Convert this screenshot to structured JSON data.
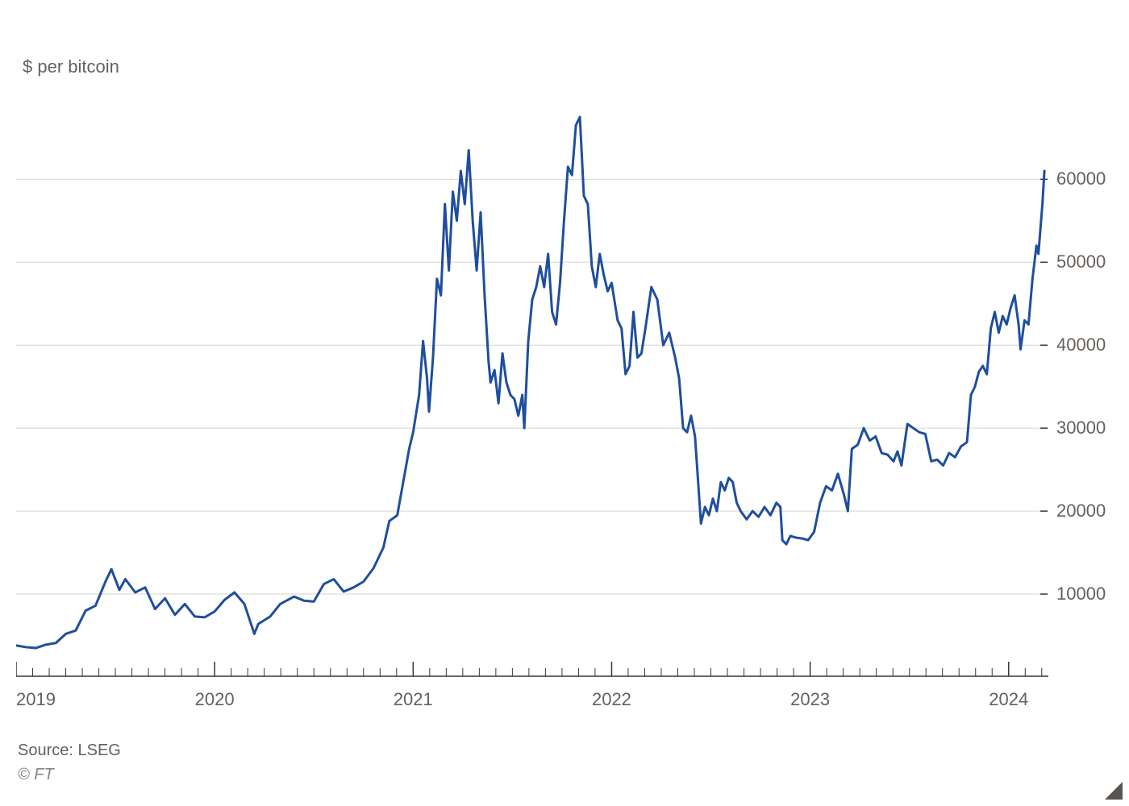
{
  "subtitle": "$ per bitcoin",
  "source": "Source: LSEG",
  "copyright": "© FT",
  "chart": {
    "type": "line",
    "background_color": "#ffffff",
    "line_color": "#1f4e9c",
    "line_width": 3,
    "grid_color": "#d9d4cf",
    "axis_color": "#3b3631",
    "tick_color": "#3b3631",
    "text_color": "#66605c",
    "label_fontsize": 22,
    "x": {
      "start_year": 2019,
      "end_year_fraction": 2024.2,
      "major_ticks": [
        2019,
        2020,
        2021,
        2022,
        2023,
        2024
      ],
      "minor_per_year": 12
    },
    "y": {
      "min": 0,
      "max": 68000,
      "gridlines": [
        10000,
        20000,
        30000,
        40000,
        50000,
        60000
      ],
      "labels": [
        "10000",
        "20000",
        "30000",
        "40000",
        "50000",
        "60000"
      ]
    },
    "series": [
      {
        "t": 2019.0,
        "v": 3800
      },
      {
        "t": 2019.05,
        "v": 3600
      },
      {
        "t": 2019.1,
        "v": 3500
      },
      {
        "t": 2019.15,
        "v": 3900
      },
      {
        "t": 2019.2,
        "v": 4100
      },
      {
        "t": 2019.25,
        "v": 5200
      },
      {
        "t": 2019.3,
        "v": 5600
      },
      {
        "t": 2019.35,
        "v": 8000
      },
      {
        "t": 2019.4,
        "v": 8600
      },
      {
        "t": 2019.45,
        "v": 11500
      },
      {
        "t": 2019.48,
        "v": 13000
      },
      {
        "t": 2019.52,
        "v": 10500
      },
      {
        "t": 2019.55,
        "v": 11800
      },
      {
        "t": 2019.6,
        "v": 10200
      },
      {
        "t": 2019.65,
        "v": 10800
      },
      {
        "t": 2019.7,
        "v": 8200
      },
      {
        "t": 2019.75,
        "v": 9500
      },
      {
        "t": 2019.8,
        "v": 7500
      },
      {
        "t": 2019.85,
        "v": 8800
      },
      {
        "t": 2019.9,
        "v": 7300
      },
      {
        "t": 2019.95,
        "v": 7200
      },
      {
        "t": 2020.0,
        "v": 7900
      },
      {
        "t": 2020.05,
        "v": 9300
      },
      {
        "t": 2020.1,
        "v": 10200
      },
      {
        "t": 2020.15,
        "v": 8800
      },
      {
        "t": 2020.2,
        "v": 5200
      },
      {
        "t": 2020.22,
        "v": 6400
      },
      {
        "t": 2020.28,
        "v": 7300
      },
      {
        "t": 2020.33,
        "v": 8800
      },
      {
        "t": 2020.4,
        "v": 9700
      },
      {
        "t": 2020.45,
        "v": 9200
      },
      {
        "t": 2020.5,
        "v": 9100
      },
      {
        "t": 2020.55,
        "v": 11200
      },
      {
        "t": 2020.6,
        "v": 11800
      },
      {
        "t": 2020.65,
        "v": 10300
      },
      {
        "t": 2020.7,
        "v": 10800
      },
      {
        "t": 2020.75,
        "v": 11500
      },
      {
        "t": 2020.8,
        "v": 13100
      },
      {
        "t": 2020.85,
        "v": 15600
      },
      {
        "t": 2020.88,
        "v": 18800
      },
      {
        "t": 2020.92,
        "v": 19500
      },
      {
        "t": 2020.95,
        "v": 23500
      },
      {
        "t": 2020.98,
        "v": 27500
      },
      {
        "t": 2021.0,
        "v": 29500
      },
      {
        "t": 2021.03,
        "v": 34000
      },
      {
        "t": 2021.05,
        "v": 40500
      },
      {
        "t": 2021.07,
        "v": 36000
      },
      {
        "t": 2021.08,
        "v": 32000
      },
      {
        "t": 2021.1,
        "v": 38500
      },
      {
        "t": 2021.12,
        "v": 48000
      },
      {
        "t": 2021.14,
        "v": 46000
      },
      {
        "t": 2021.16,
        "v": 57000
      },
      {
        "t": 2021.18,
        "v": 49000
      },
      {
        "t": 2021.2,
        "v": 58500
      },
      {
        "t": 2021.22,
        "v": 55000
      },
      {
        "t": 2021.24,
        "v": 61000
      },
      {
        "t": 2021.26,
        "v": 57000
      },
      {
        "t": 2021.28,
        "v": 63500
      },
      {
        "t": 2021.3,
        "v": 55000
      },
      {
        "t": 2021.32,
        "v": 49000
      },
      {
        "t": 2021.34,
        "v": 56000
      },
      {
        "t": 2021.36,
        "v": 46000
      },
      {
        "t": 2021.38,
        "v": 38000
      },
      {
        "t": 2021.39,
        "v": 35500
      },
      {
        "t": 2021.41,
        "v": 37000
      },
      {
        "t": 2021.43,
        "v": 33000
      },
      {
        "t": 2021.45,
        "v": 39000
      },
      {
        "t": 2021.47,
        "v": 35500
      },
      {
        "t": 2021.49,
        "v": 34000
      },
      {
        "t": 2021.51,
        "v": 33500
      },
      {
        "t": 2021.53,
        "v": 31500
      },
      {
        "t": 2021.55,
        "v": 34000
      },
      {
        "t": 2021.56,
        "v": 30000
      },
      {
        "t": 2021.58,
        "v": 40500
      },
      {
        "t": 2021.6,
        "v": 45500
      },
      {
        "t": 2021.62,
        "v": 47000
      },
      {
        "t": 2021.64,
        "v": 49500
      },
      {
        "t": 2021.66,
        "v": 47000
      },
      {
        "t": 2021.68,
        "v": 51000
      },
      {
        "t": 2021.7,
        "v": 44000
      },
      {
        "t": 2021.72,
        "v": 42500
      },
      {
        "t": 2021.74,
        "v": 47500
      },
      {
        "t": 2021.76,
        "v": 55000
      },
      {
        "t": 2021.78,
        "v": 61500
      },
      {
        "t": 2021.8,
        "v": 60500
      },
      {
        "t": 2021.82,
        "v": 66500
      },
      {
        "t": 2021.84,
        "v": 67500
      },
      {
        "t": 2021.86,
        "v": 58000
      },
      {
        "t": 2021.88,
        "v": 57000
      },
      {
        "t": 2021.9,
        "v": 49500
      },
      {
        "t": 2021.92,
        "v": 47000
      },
      {
        "t": 2021.94,
        "v": 51000
      },
      {
        "t": 2021.96,
        "v": 48500
      },
      {
        "t": 2021.98,
        "v": 46500
      },
      {
        "t": 2022.0,
        "v": 47500
      },
      {
        "t": 2022.03,
        "v": 43000
      },
      {
        "t": 2022.05,
        "v": 42000
      },
      {
        "t": 2022.07,
        "v": 36500
      },
      {
        "t": 2022.09,
        "v": 37500
      },
      {
        "t": 2022.11,
        "v": 44000
      },
      {
        "t": 2022.13,
        "v": 38500
      },
      {
        "t": 2022.15,
        "v": 39000
      },
      {
        "t": 2022.17,
        "v": 42000
      },
      {
        "t": 2022.2,
        "v": 47000
      },
      {
        "t": 2022.23,
        "v": 45500
      },
      {
        "t": 2022.26,
        "v": 40000
      },
      {
        "t": 2022.29,
        "v": 41500
      },
      {
        "t": 2022.32,
        "v": 38500
      },
      {
        "t": 2022.34,
        "v": 36000
      },
      {
        "t": 2022.36,
        "v": 30000
      },
      {
        "t": 2022.38,
        "v": 29500
      },
      {
        "t": 2022.4,
        "v": 31500
      },
      {
        "t": 2022.42,
        "v": 29000
      },
      {
        "t": 2022.44,
        "v": 22000
      },
      {
        "t": 2022.45,
        "v": 18500
      },
      {
        "t": 2022.47,
        "v": 20500
      },
      {
        "t": 2022.49,
        "v": 19500
      },
      {
        "t": 2022.51,
        "v": 21500
      },
      {
        "t": 2022.53,
        "v": 20000
      },
      {
        "t": 2022.55,
        "v": 23500
      },
      {
        "t": 2022.57,
        "v": 22500
      },
      {
        "t": 2022.59,
        "v": 24000
      },
      {
        "t": 2022.61,
        "v": 23500
      },
      {
        "t": 2022.63,
        "v": 21000
      },
      {
        "t": 2022.65,
        "v": 20000
      },
      {
        "t": 2022.68,
        "v": 19000
      },
      {
        "t": 2022.71,
        "v": 20000
      },
      {
        "t": 2022.74,
        "v": 19300
      },
      {
        "t": 2022.77,
        "v": 20500
      },
      {
        "t": 2022.8,
        "v": 19500
      },
      {
        "t": 2022.83,
        "v": 21000
      },
      {
        "t": 2022.85,
        "v": 20500
      },
      {
        "t": 2022.86,
        "v": 16500
      },
      {
        "t": 2022.88,
        "v": 16000
      },
      {
        "t": 2022.9,
        "v": 17000
      },
      {
        "t": 2022.93,
        "v": 16800
      },
      {
        "t": 2022.96,
        "v": 16700
      },
      {
        "t": 2022.99,
        "v": 16500
      },
      {
        "t": 2023.02,
        "v": 17500
      },
      {
        "t": 2023.05,
        "v": 21000
      },
      {
        "t": 2023.08,
        "v": 23000
      },
      {
        "t": 2023.11,
        "v": 22500
      },
      {
        "t": 2023.14,
        "v": 24500
      },
      {
        "t": 2023.17,
        "v": 22000
      },
      {
        "t": 2023.19,
        "v": 20000
      },
      {
        "t": 2023.21,
        "v": 27500
      },
      {
        "t": 2023.24,
        "v": 28000
      },
      {
        "t": 2023.27,
        "v": 30000
      },
      {
        "t": 2023.3,
        "v": 28500
      },
      {
        "t": 2023.33,
        "v": 29000
      },
      {
        "t": 2023.36,
        "v": 27000
      },
      {
        "t": 2023.39,
        "v": 26800
      },
      {
        "t": 2023.42,
        "v": 26000
      },
      {
        "t": 2023.44,
        "v": 27200
      },
      {
        "t": 2023.46,
        "v": 25500
      },
      {
        "t": 2023.49,
        "v": 30500
      },
      {
        "t": 2023.52,
        "v": 30000
      },
      {
        "t": 2023.55,
        "v": 29500
      },
      {
        "t": 2023.58,
        "v": 29300
      },
      {
        "t": 2023.61,
        "v": 26000
      },
      {
        "t": 2023.64,
        "v": 26200
      },
      {
        "t": 2023.67,
        "v": 25500
      },
      {
        "t": 2023.7,
        "v": 27000
      },
      {
        "t": 2023.73,
        "v": 26500
      },
      {
        "t": 2023.76,
        "v": 27800
      },
      {
        "t": 2023.79,
        "v": 28300
      },
      {
        "t": 2023.81,
        "v": 34000
      },
      {
        "t": 2023.83,
        "v": 35000
      },
      {
        "t": 2023.85,
        "v": 36800
      },
      {
        "t": 2023.87,
        "v": 37500
      },
      {
        "t": 2023.89,
        "v": 36500
      },
      {
        "t": 2023.91,
        "v": 42000
      },
      {
        "t": 2023.93,
        "v": 44000
      },
      {
        "t": 2023.95,
        "v": 41500
      },
      {
        "t": 2023.97,
        "v": 43500
      },
      {
        "t": 2023.99,
        "v": 42500
      },
      {
        "t": 2024.01,
        "v": 44500
      },
      {
        "t": 2024.03,
        "v": 46000
      },
      {
        "t": 2024.05,
        "v": 42500
      },
      {
        "t": 2024.06,
        "v": 39500
      },
      {
        "t": 2024.08,
        "v": 43000
      },
      {
        "t": 2024.1,
        "v": 42500
      },
      {
        "t": 2024.12,
        "v": 48000
      },
      {
        "t": 2024.14,
        "v": 52000
      },
      {
        "t": 2024.15,
        "v": 51000
      },
      {
        "t": 2024.17,
        "v": 57000
      },
      {
        "t": 2024.18,
        "v": 61000
      }
    ]
  }
}
